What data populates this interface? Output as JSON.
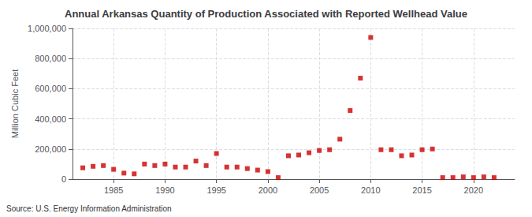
{
  "chart_data": {
    "type": "scatter",
    "title": "Annual Arkansas Quantity of Production Associated with Reported Wellhead Value",
    "ylabel": "Million Cubic Feet",
    "source": "Source: U.S. Energy Information Administration",
    "x": [
      1982,
      1983,
      1984,
      1985,
      1986,
      1987,
      1988,
      1989,
      1990,
      1991,
      1992,
      1993,
      1994,
      1995,
      1996,
      1997,
      1998,
      1999,
      2000,
      2001,
      2002,
      2003,
      2004,
      2005,
      2006,
      2007,
      2008,
      2009,
      2010,
      2011,
      2012,
      2013,
      2014,
      2015,
      2016,
      2017,
      2018,
      2019,
      2020,
      2021,
      2022
    ],
    "values": [
      75000,
      85000,
      90000,
      65000,
      40000,
      35000,
      100000,
      90000,
      100000,
      80000,
      80000,
      120000,
      90000,
      170000,
      80000,
      80000,
      70000,
      60000,
      50000,
      10000,
      155000,
      160000,
      175000,
      190000,
      195000,
      265000,
      455000,
      670000,
      940000,
      195000,
      195000,
      155000,
      160000,
      195000,
      200000,
      10000,
      10000,
      15000,
      10000,
      15000,
      10000
    ],
    "color": "#cc0000",
    "marker": "square",
    "xlim": [
      1981,
      2024
    ],
    "xticks": [
      1985,
      1990,
      1995,
      2000,
      2005,
      2010,
      2015,
      2020
    ],
    "ylim": [
      0,
      1000000
    ],
    "yticks": [
      0,
      {
        "value": 200000,
        "label": "200,000"
      },
      {
        "value": 400000,
        "label": "400,000"
      },
      {
        "value": 600000,
        "label": "600,000"
      },
      {
        "value": 800000,
        "label": "800,000"
      },
      {
        "value": 1000000,
        "label": "1,000,000"
      }
    ],
    "grid": true
  }
}
